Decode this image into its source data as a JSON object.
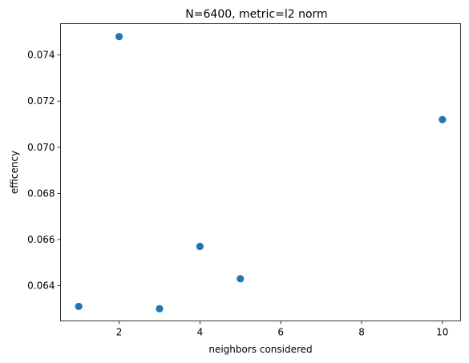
{
  "chart_data": {
    "type": "scatter",
    "title": "N=6400, metric=l2 norm",
    "xlabel": "neighbors considered",
    "ylabel": "efficency",
    "xlim": [
      0.55,
      10.45
    ],
    "ylim": [
      0.06247,
      0.07536
    ],
    "xticks": [
      2,
      4,
      6,
      8,
      10
    ],
    "xtick_labels": [
      "2",
      "4",
      "6",
      "8",
      "10"
    ],
    "yticks": [
      0.064,
      0.066,
      0.068,
      0.07,
      0.072,
      0.074
    ],
    "ytick_labels": [
      "0.064",
      "0.066",
      "0.068",
      "0.070",
      "0.072",
      "0.074"
    ],
    "grid": false,
    "series": [
      {
        "color": "#1f77b4",
        "x": [
          1,
          2,
          3,
          4,
          5,
          10
        ],
        "y": [
          0.0631,
          0.0748,
          0.063,
          0.0657,
          0.0643,
          0.0712
        ]
      }
    ]
  }
}
